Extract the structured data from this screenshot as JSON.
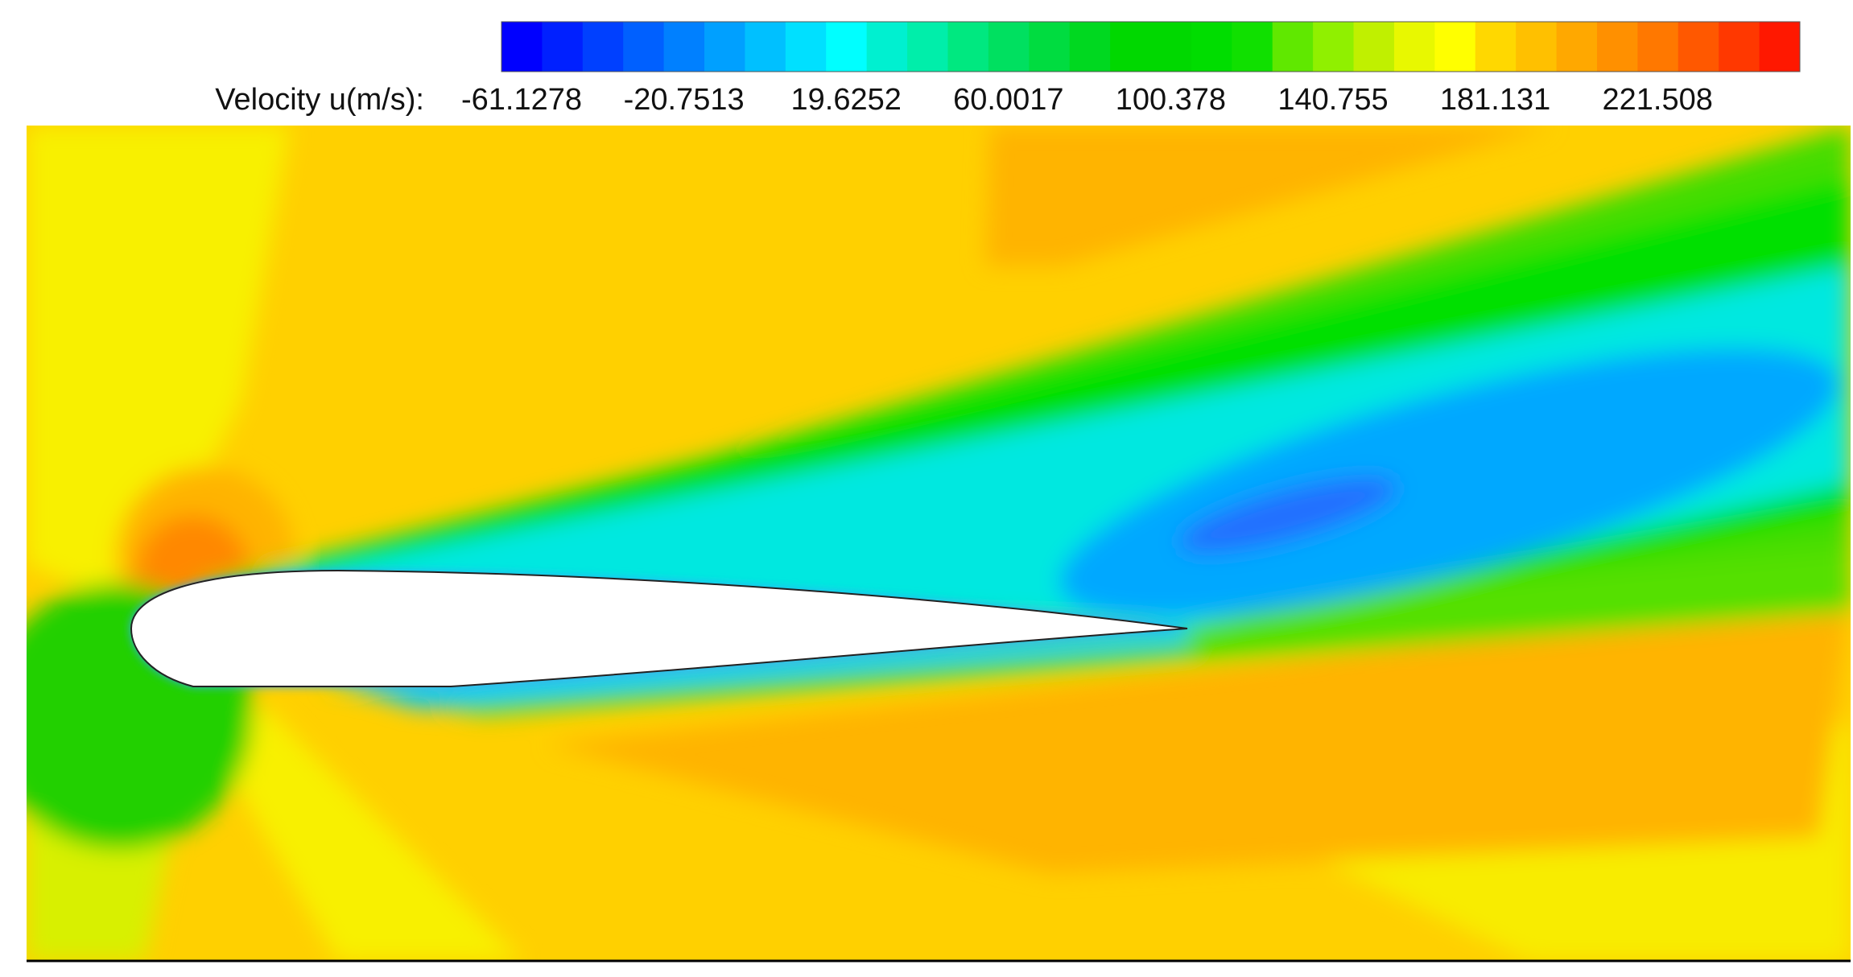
{
  "colorbar": {
    "label": "Velocity u(m/s):",
    "ticks": [
      "-61.1278",
      "-20.7513",
      "19.6252",
      "60.0017",
      "100.378",
      "140.755",
      "181.131",
      "221.508"
    ]
  }
}
